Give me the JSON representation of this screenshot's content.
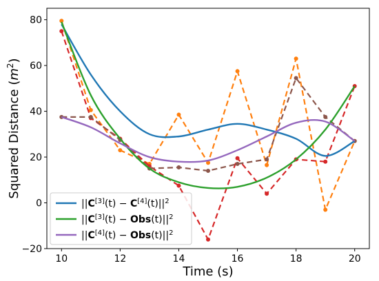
{
  "chart_data": {
    "type": "line",
    "title": "",
    "xlabel": "Time (s)",
    "ylabel": "Squared Distance (m²)",
    "xlim": [
      9.5,
      20.5
    ],
    "ylim": [
      -20,
      85
    ],
    "xticks": [
      10,
      12,
      14,
      16,
      18,
      20
    ],
    "yticks": [
      -20,
      0,
      20,
      40,
      60,
      80
    ],
    "grid": false,
    "legend_position": "lower-left",
    "x": [
      10,
      11,
      12,
      13,
      14,
      15,
      16,
      17,
      18,
      19,
      20
    ],
    "series": [
      {
        "name": "||C[3](t) − C[4](t)||²",
        "style": "solid",
        "color": "#1f77b4",
        "values": [
          78,
          56,
          40,
          30,
          29,
          32,
          34.5,
          32,
          28,
          20.5,
          27
        ]
      },
      {
        "name": "||C[3](t) − Obs(t)||²",
        "style": "solid",
        "color": "#2ca02c",
        "values": [
          79,
          47,
          28,
          15,
          9,
          6.5,
          7,
          11,
          19,
          32,
          51
        ]
      },
      {
        "name": "||C[4](t) − Obs(t)||²",
        "style": "solid",
        "color": "#9467bd",
        "values": [
          37.5,
          33,
          26,
          20,
          18,
          18.5,
          23,
          29,
          35,
          35.5,
          27
        ]
      },
      {
        "style": "dashed",
        "color": "#ff7f0e",
        "values": [
          79.5,
          40.5,
          23,
          17,
          38.5,
          17.5,
          57.5,
          16.5,
          63,
          -3,
          27
        ]
      },
      {
        "style": "dashed",
        "color": "#d62728",
        "values": [
          75,
          37,
          28,
          16,
          7.5,
          -16,
          19.5,
          4,
          19,
          18,
          51
        ]
      },
      {
        "style": "dashed",
        "color": "#8c564b",
        "values": [
          37.5,
          37.5,
          27.5,
          15,
          15.5,
          14,
          17,
          19,
          54.5,
          37.5,
          27
        ]
      }
    ],
    "legend": [
      {
        "prefix": "||",
        "c1": "C",
        "s1": "[3]",
        "t1": "(t) − ",
        "c2": "C",
        "s2": "[4]",
        "t2": "(t)||",
        "sq": "2",
        "color": "#1f77b4"
      },
      {
        "prefix": "||",
        "c1": "C",
        "s1": "[3]",
        "t1": "(t) − ",
        "c2": "Obs",
        "s2": "",
        "t2": "(t)||",
        "sq": "2",
        "color": "#2ca02c"
      },
      {
        "prefix": "||",
        "c1": "C",
        "s1": "[4]",
        "t1": "(t) − ",
        "c2": "Obs",
        "s2": "",
        "t2": "(t)||",
        "sq": "2",
        "color": "#9467bd"
      }
    ]
  }
}
